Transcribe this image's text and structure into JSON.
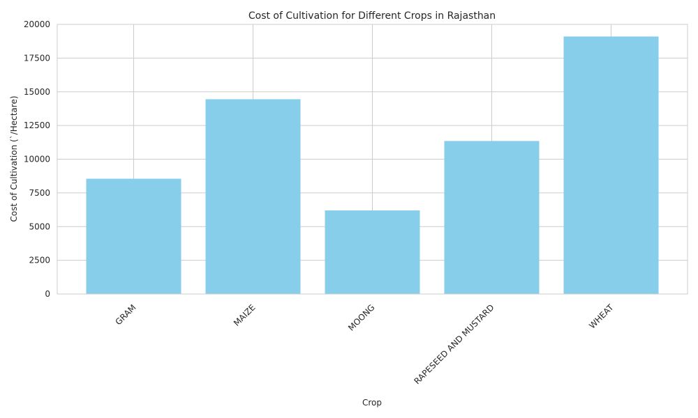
{
  "chart_data": {
    "type": "bar",
    "title": "Cost of Cultivation for Different Crops in Rajasthan",
    "xlabel": "Crop",
    "ylabel": "Cost of Cultivation (`/Hectare)",
    "categories": [
      "GRAM",
      "MAIZE",
      "MOONG",
      "RAPESEED AND MUSTARD",
      "WHEAT"
    ],
    "values": [
      8550,
      14450,
      6200,
      11350,
      19100
    ],
    "ylim": [
      0,
      20000
    ],
    "yticks": [
      0,
      2500,
      5000,
      7500,
      10000,
      12500,
      15000,
      17500,
      20000
    ],
    "bar_color": "#87CEEB",
    "grid": true,
    "legend": false
  }
}
